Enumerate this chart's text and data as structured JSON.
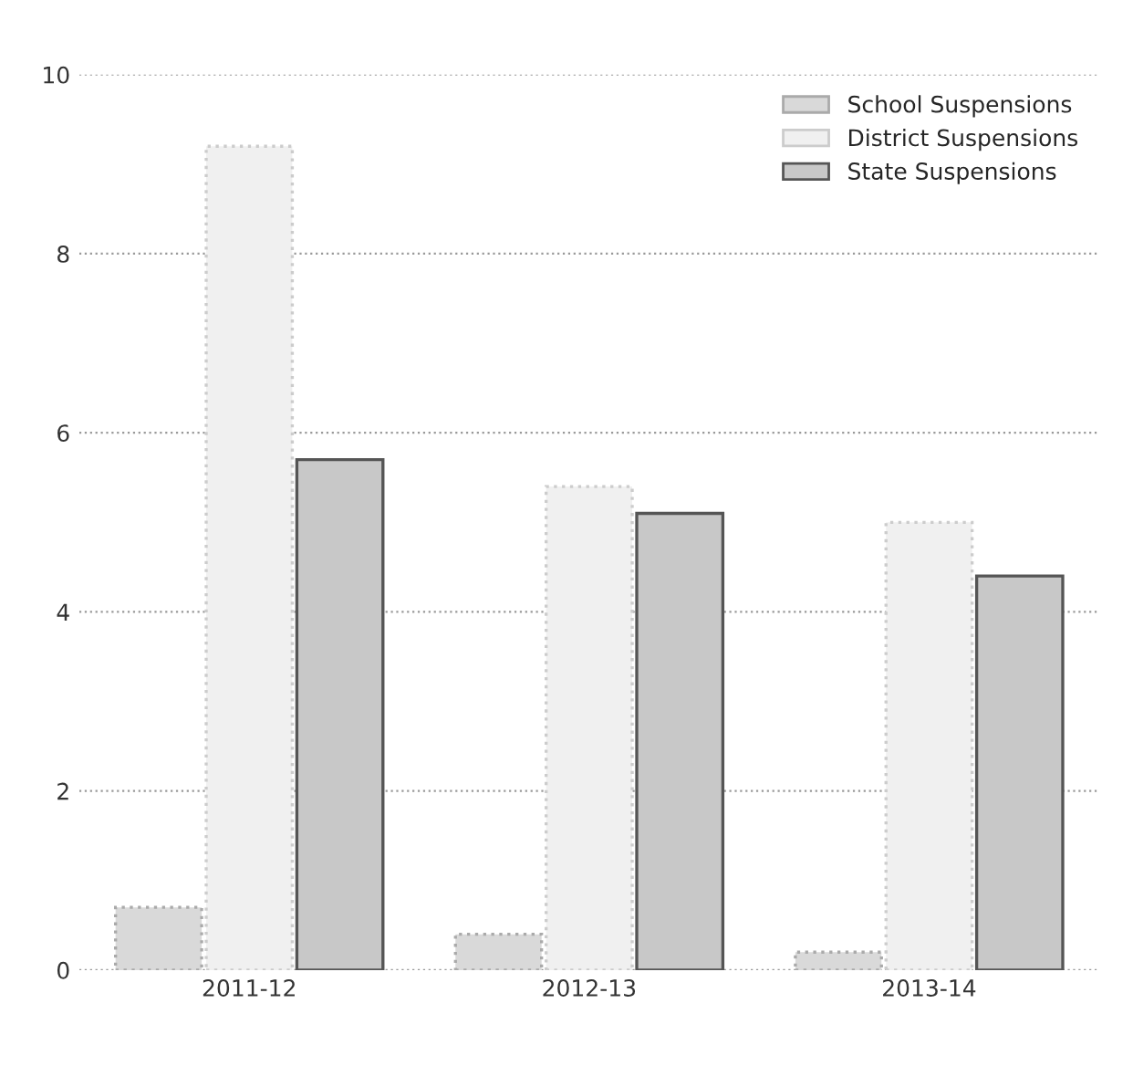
{
  "chart_data": {
    "type": "bar",
    "categories": [
      "2011-12",
      "2012-13",
      "2013-14"
    ],
    "series": [
      {
        "name": "School Suspensions",
        "color": "#d9d9d9",
        "values": [
          0.7,
          0.4,
          0.2
        ]
      },
      {
        "name": "District Suspensions",
        "color": "#f0f0f0",
        "values": [
          9.2,
          5.4,
          5.0
        ]
      },
      {
        "name": "State Suspensions",
        "color": "#c8c8c8",
        "values": [
          5.7,
          5.1,
          4.4
        ]
      }
    ],
    "ylim": [
      0,
      10
    ],
    "yticks": [
      0,
      2,
      4,
      6,
      8,
      10
    ],
    "grid": "y",
    "legend": "top right"
  }
}
